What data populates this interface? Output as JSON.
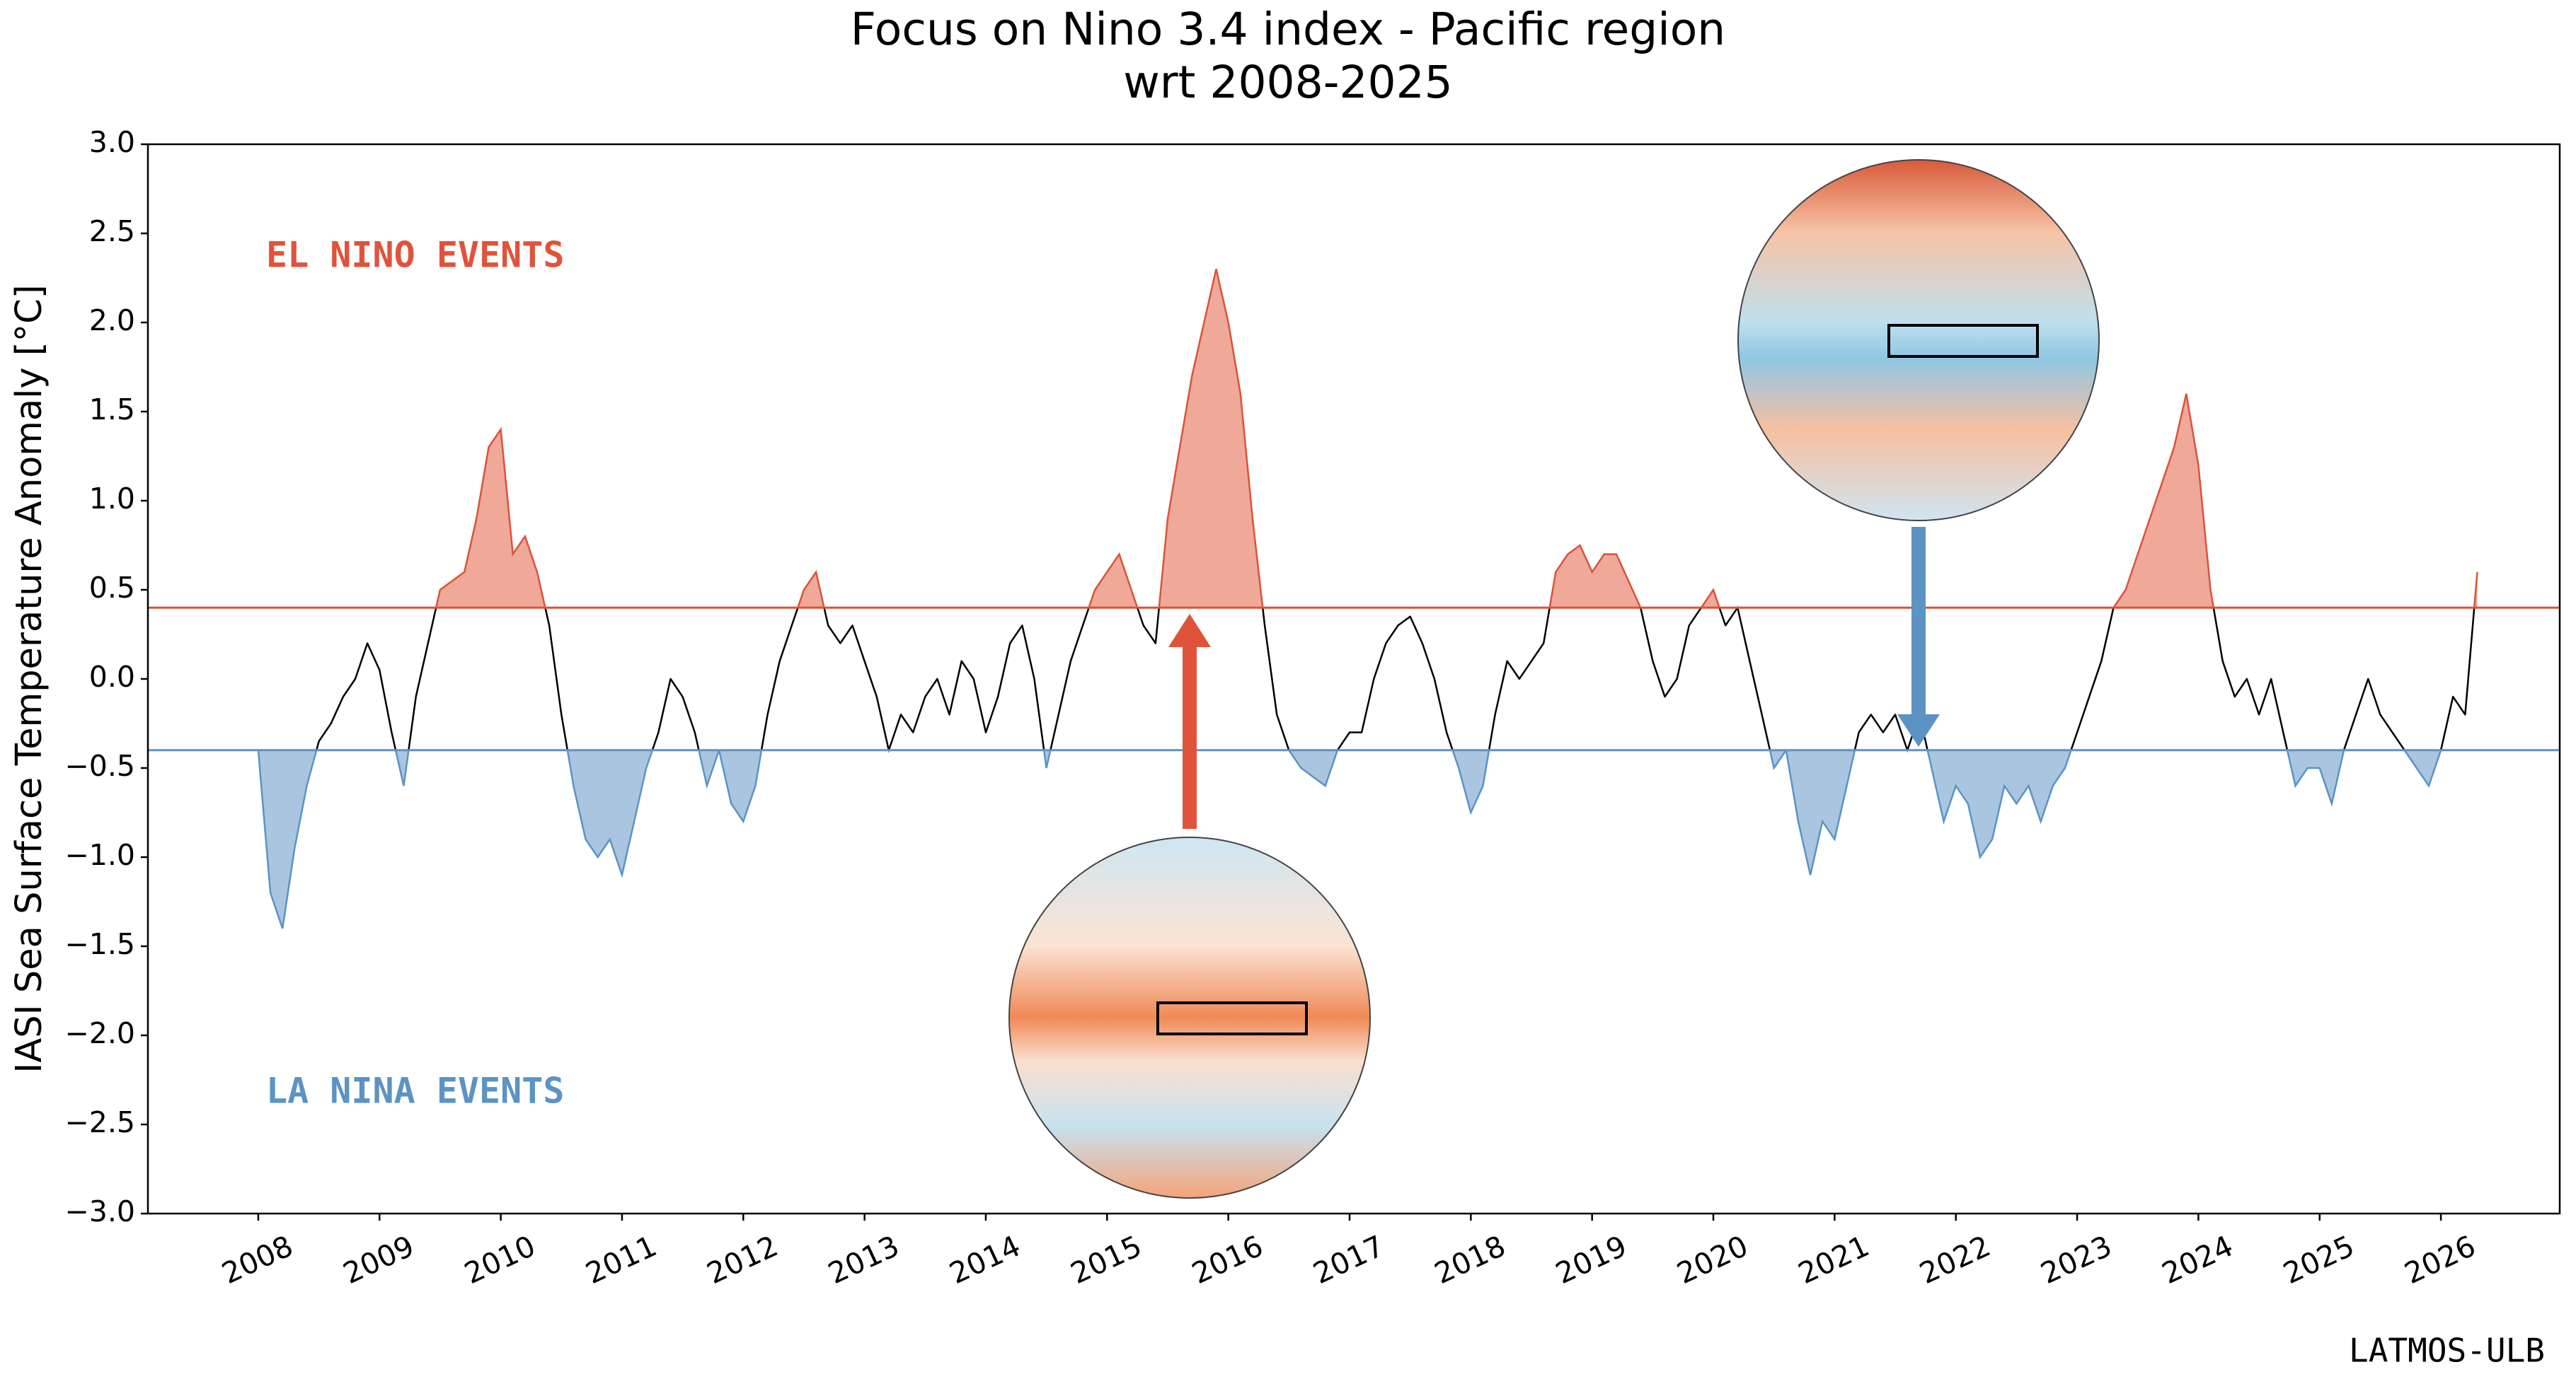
{
  "chart_data": {
    "type": "line",
    "title": "Focus on Nino 3.4 index - Pacific region",
    "subtitle": "wrt 2008-2025",
    "y_label": "IASI Sea Surface Temperature Anomaly [°C]",
    "annotations": [
      {
        "text": "EL NINO EVENTS",
        "color": "#e0533b"
      },
      {
        "text": "LA NINA EVENTS",
        "color": "#5b93c4"
      },
      {
        "text": "LATMOS-ULB",
        "color": "#000000"
      }
    ],
    "thresholds": [
      {
        "value": 0.4,
        "color": "#d9533a",
        "fill": "#f0a898"
      },
      {
        "value": -0.4,
        "color": "#5b93c4",
        "fill": "#a9c5e0"
      }
    ],
    "x": [
      2008.0,
      2008.1,
      2008.2,
      2008.3,
      2008.4,
      2008.5,
      2008.6,
      2008.7,
      2008.8,
      2008.9,
      2009.0,
      2009.1,
      2009.2,
      2009.3,
      2009.4,
      2009.5,
      2009.6,
      2009.7,
      2009.8,
      2009.9,
      2010.0,
      2010.1,
      2010.2,
      2010.3,
      2010.4,
      2010.5,
      2010.6,
      2010.7,
      2010.8,
      2010.9,
      2011.0,
      2011.1,
      2011.2,
      2011.3,
      2011.4,
      2011.5,
      2011.6,
      2011.7,
      2011.8,
      2011.9,
      2012.0,
      2012.1,
      2012.2,
      2012.3,
      2012.4,
      2012.5,
      2012.6,
      2012.7,
      2012.8,
      2012.9,
      2013.0,
      2013.1,
      2013.2,
      2013.3,
      2013.4,
      2013.5,
      2013.6,
      2013.7,
      2013.8,
      2013.9,
      2014.0,
      2014.1,
      2014.2,
      2014.3,
      2014.4,
      2014.5,
      2014.6,
      2014.7,
      2014.8,
      2014.9,
      2015.0,
      2015.1,
      2015.2,
      2015.3,
      2015.4,
      2015.5,
      2015.6,
      2015.7,
      2015.8,
      2015.9,
      2016.0,
      2016.1,
      2016.2,
      2016.3,
      2016.4,
      2016.5,
      2016.6,
      2016.7,
      2016.8,
      2016.9,
      2017.0,
      2017.1,
      2017.2,
      2017.3,
      2017.4,
      2017.5,
      2017.6,
      2017.7,
      2017.8,
      2017.9,
      2018.0,
      2018.1,
      2018.2,
      2018.3,
      2018.4,
      2018.5,
      2018.6,
      2018.7,
      2018.8,
      2018.9,
      2019.0,
      2019.1,
      2019.2,
      2019.3,
      2019.4,
      2019.5,
      2019.6,
      2019.7,
      2019.8,
      2019.9,
      2020.0,
      2020.1,
      2020.2,
      2020.3,
      2020.4,
      2020.5,
      2020.6,
      2020.7,
      2020.8,
      2020.9,
      2021.0,
      2021.1,
      2021.2,
      2021.3,
      2021.4,
      2021.5,
      2021.6,
      2021.7,
      2021.8,
      2021.9,
      2022.0,
      2022.1,
      2022.2,
      2022.3,
      2022.4,
      2022.5,
      2022.6,
      2022.7,
      2022.8,
      2022.9,
      2023.0,
      2023.1,
      2023.2,
      2023.3,
      2023.4,
      2023.5,
      2023.6,
      2023.7,
      2023.8,
      2023.9,
      2024.0,
      2024.1,
      2024.2,
      2024.3,
      2024.4,
      2024.5,
      2024.6,
      2024.7,
      2024.8,
      2024.9,
      2025.0,
      2025.1,
      2025.2,
      2025.3,
      2025.4,
      2025.5,
      2025.6,
      2025.7,
      2025.8,
      2025.9,
      2026.0,
      2026.1,
      2026.2,
      2026.3
    ],
    "values": [
      -0.4,
      -1.2,
      -1.4,
      -0.95,
      -0.6,
      -0.35,
      -0.25,
      -0.1,
      0.0,
      0.2,
      0.05,
      -0.3,
      -0.6,
      -0.1,
      0.2,
      0.5,
      0.55,
      0.6,
      0.9,
      1.3,
      1.4,
      0.7,
      0.8,
      0.6,
      0.3,
      -0.2,
      -0.6,
      -0.9,
      -1.0,
      -0.9,
      -1.1,
      -0.8,
      -0.5,
      -0.3,
      0.0,
      -0.1,
      -0.3,
      -0.6,
      -0.4,
      -0.7,
      -0.8,
      -0.6,
      -0.2,
      0.1,
      0.3,
      0.5,
      0.6,
      0.3,
      0.2,
      0.3,
      0.1,
      -0.1,
      -0.4,
      -0.2,
      -0.3,
      -0.1,
      0.0,
      -0.2,
      0.1,
      0.0,
      -0.3,
      -0.1,
      0.2,
      0.3,
      0.0,
      -0.5,
      -0.2,
      0.1,
      0.3,
      0.5,
      0.6,
      0.7,
      0.5,
      0.3,
      0.2,
      0.9,
      1.3,
      1.7,
      2.0,
      2.3,
      2.0,
      1.6,
      0.9,
      0.3,
      -0.2,
      -0.4,
      -0.5,
      -0.55,
      -0.6,
      -0.4,
      -0.3,
      -0.3,
      0.0,
      0.2,
      0.3,
      0.35,
      0.2,
      0.0,
      -0.3,
      -0.5,
      -0.75,
      -0.6,
      -0.2,
      0.1,
      0.0,
      0.1,
      0.2,
      0.6,
      0.7,
      0.75,
      0.6,
      0.7,
      0.7,
      0.55,
      0.4,
      0.1,
      -0.1,
      0.0,
      0.3,
      0.4,
      0.5,
      0.3,
      0.4,
      0.1,
      -0.2,
      -0.5,
      -0.4,
      -0.8,
      -1.1,
      -0.8,
      -0.9,
      -0.6,
      -0.3,
      -0.2,
      -0.3,
      -0.2,
      -0.4,
      -0.2,
      -0.5,
      -0.8,
      -0.6,
      -0.7,
      -1.0,
      -0.9,
      -0.6,
      -0.7,
      -0.6,
      -0.8,
      -0.6,
      -0.5,
      -0.3,
      -0.1,
      0.1,
      0.4,
      0.5,
      0.7,
      0.9,
      1.1,
      1.3,
      1.6,
      1.2,
      0.5,
      0.1,
      -0.1,
      0.0,
      -0.2,
      0.0,
      -0.3,
      -0.6,
      -0.5,
      -0.5,
      -0.7,
      -0.4,
      -0.2,
      0.0,
      -0.2,
      -0.3,
      -0.4,
      -0.5,
      -0.6,
      -0.4,
      -0.1,
      -0.2,
      0.6
    ],
    "color": "#000000",
    "xlim": [
      2007.09,
      2026.98
    ],
    "ylim": [
      -3.0,
      3.0
    ],
    "xticks": [
      2008,
      2009,
      2010,
      2011,
      2012,
      2013,
      2014,
      2015,
      2016,
      2017,
      2018,
      2019,
      2020,
      2021,
      2022,
      2023,
      2024,
      2025,
      2026
    ],
    "yticks": [
      {
        "value": -3.0,
        "label": "−3.0"
      },
      {
        "value": -2.5,
        "label": "−2.5"
      },
      {
        "value": -2.0,
        "label": "−2.0"
      },
      {
        "value": -1.5,
        "label": "−1.5"
      },
      {
        "value": -1.0,
        "label": "−1.0"
      },
      {
        "value": -0.5,
        "label": "−0.5"
      },
      {
        "value": 0.0,
        "label": "0.0"
      },
      {
        "value": 0.5,
        "label": "0.5"
      },
      {
        "value": 1.0,
        "label": "1.0"
      },
      {
        "value": 1.5,
        "label": "1.5"
      },
      {
        "value": 2.0,
        "label": "2.0"
      },
      {
        "value": 2.5,
        "label": "2.5"
      },
      {
        "value": 3.0,
        "label": "3.0"
      }
    ],
    "grid": false
  }
}
